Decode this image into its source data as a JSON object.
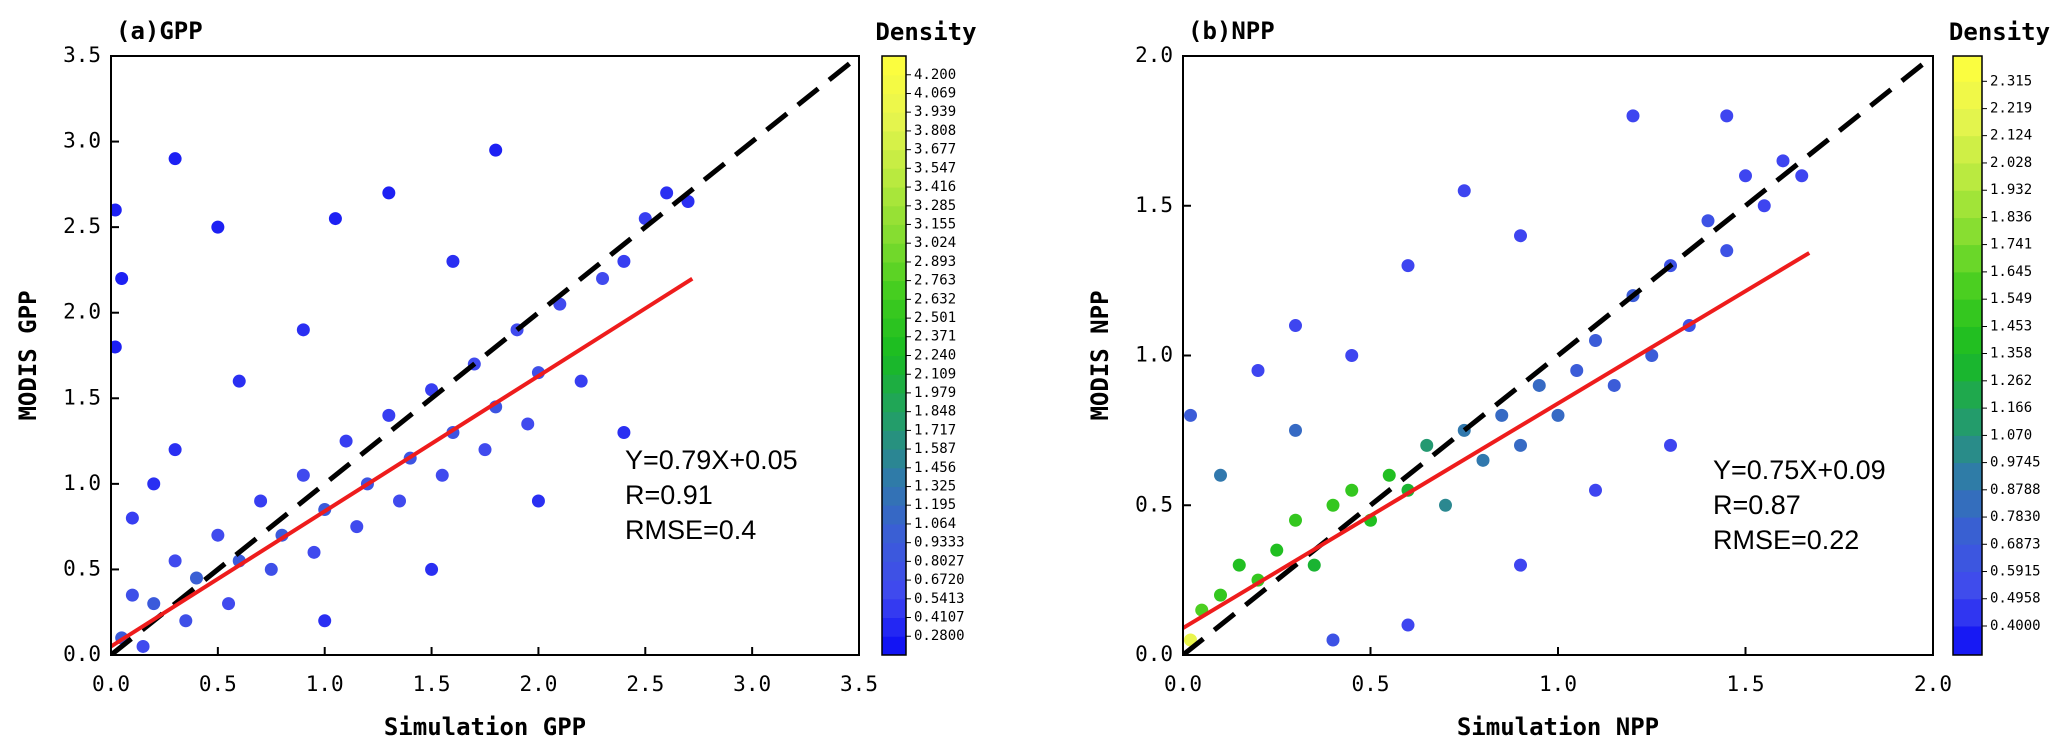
{
  "chart_data": [
    {
      "type": "scatter",
      "title": "(a)GPP",
      "xlabel": "Simulation GPP",
      "ylabel": "MODIS GPP",
      "xlim": [
        0,
        3.5
      ],
      "ylim": [
        0,
        3.5
      ],
      "xticks": [
        {
          "value": 0,
          "label": "0.0"
        },
        0.5,
        {
          "value": 1,
          "label": "1.0"
        },
        1.5,
        {
          "value": 2,
          "label": "2.0"
        },
        2.5,
        {
          "value": 3,
          "label": "3.0"
        },
        3.5
      ],
      "yticks": [
        {
          "value": 0,
          "label": "0.0"
        },
        0.5,
        {
          "value": 1,
          "label": "1.0"
        },
        1.5,
        {
          "value": 2,
          "label": "2.0"
        },
        2.5,
        {
          "value": 3,
          "label": "3.0"
        },
        3.5
      ],
      "x": [
        0.05,
        0.1,
        0.15,
        0.2,
        0.3,
        0.35,
        0.4,
        0.5,
        0.55,
        0.6,
        0.7,
        0.75,
        0.8,
        0.9,
        0.95,
        1.0,
        1.1,
        1.15,
        1.2,
        1.3,
        1.35,
        1.4,
        1.5,
        1.55,
        1.6,
        1.7,
        1.75,
        1.8,
        1.9,
        1.95,
        2.0,
        2.1,
        2.2,
        2.3,
        2.4,
        2.5,
        2.6,
        2.7,
        0.3,
        0.5,
        1.05,
        1.3,
        1.8,
        0.02,
        0.05,
        0.02,
        0.3,
        0.6,
        1.0,
        1.5,
        2.0,
        2.4,
        0.9,
        1.6,
        0.1,
        0.2
      ],
      "y": [
        0.1,
        0.35,
        0.05,
        0.3,
        0.55,
        0.2,
        0.45,
        0.7,
        0.3,
        0.55,
        0.9,
        0.5,
        0.7,
        1.05,
        0.6,
        0.85,
        1.25,
        0.75,
        1.0,
        1.4,
        0.9,
        1.15,
        1.55,
        1.05,
        1.3,
        1.7,
        1.2,
        1.45,
        1.9,
        1.35,
        1.65,
        2.05,
        1.6,
        2.2,
        2.3,
        2.55,
        2.7,
        2.65,
        2.9,
        2.5,
        2.55,
        2.7,
        2.95,
        2.6,
        2.2,
        1.8,
        1.2,
        1.6,
        0.2,
        0.5,
        0.9,
        1.3,
        1.9,
        2.3,
        0.8,
        1.0
      ],
      "density": [
        0.9,
        0.7,
        0.6,
        0.9,
        0.6,
        0.7,
        1.0,
        0.6,
        0.6,
        0.9,
        0.5,
        0.7,
        0.9,
        0.6,
        0.6,
        0.9,
        0.5,
        0.6,
        0.8,
        0.5,
        0.6,
        0.8,
        0.5,
        0.6,
        0.8,
        0.6,
        0.6,
        0.8,
        0.6,
        0.6,
        0.7,
        0.6,
        0.5,
        0.6,
        0.5,
        0.5,
        0.4,
        0.4,
        0.3,
        0.3,
        0.3,
        0.3,
        0.3,
        0.3,
        0.3,
        0.3,
        0.4,
        0.4,
        0.4,
        0.4,
        0.4,
        0.4,
        0.4,
        0.4,
        0.5,
        0.4
      ],
      "identity_line": true,
      "fit": {
        "slope": 0.79,
        "intercept": 0.05,
        "xrange": [
          0,
          2.72
        ],
        "color": "#ee1c1c"
      },
      "annotations": [
        "Y=0.79X+0.05",
        "R=0.91",
        "RMSE=0.4"
      ],
      "colorbar": {
        "title": "Density",
        "lim": [
          0.149,
          4.331
        ],
        "ticks": [
          {
            "value": 0.28,
            "label": "0.2800"
          },
          0.4107,
          0.5413,
          {
            "value": 0.672,
            "label": "0.6720"
          },
          0.8027,
          0.9333,
          1.064,
          1.195,
          1.325,
          1.456,
          1.587,
          1.717,
          1.848,
          1.979,
          2.109,
          {
            "value": 2.24,
            "label": "2.240"
          },
          2.371,
          2.501,
          2.632,
          2.763,
          2.893,
          3.024,
          3.155,
          3.285,
          3.416,
          3.547,
          3.677,
          3.808,
          3.939,
          4.069,
          {
            "value": 4.2,
            "label": "4.200"
          }
        ],
        "colormap": [
          "#0a0af5",
          "#4048f0",
          "#3a5ed6",
          "#2f7ca6",
          "#22a064",
          "#18bb22",
          "#40cc1e",
          "#84dd30",
          "#bbea40",
          "#e8f54e",
          "#ffff3c"
        ]
      }
    },
    {
      "type": "scatter",
      "title": "(b)NPP",
      "xlabel": "Simulation NPP",
      "ylabel": "MODIS NPP",
      "xlim": [
        0,
        2
      ],
      "ylim": [
        0,
        2
      ],
      "xticks": [
        {
          "value": 0,
          "label": "0.0"
        },
        0.5,
        {
          "value": 1,
          "label": "1.0"
        },
        1.5,
        {
          "value": 2,
          "label": "2.0"
        }
      ],
      "yticks": [
        {
          "value": 0,
          "label": "0.0"
        },
        0.5,
        {
          "value": 1,
          "label": "1.0"
        },
        1.5,
        {
          "value": 2,
          "label": "2.0"
        }
      ],
      "x": [
        0.02,
        0.05,
        0.1,
        0.15,
        0.2,
        0.25,
        0.3,
        0.35,
        0.4,
        0.45,
        0.5,
        0.55,
        0.6,
        0.65,
        0.7,
        0.75,
        0.8,
        0.85,
        0.9,
        0.95,
        1.0,
        1.05,
        1.1,
        1.15,
        1.2,
        1.25,
        1.3,
        1.35,
        1.4,
        1.45,
        1.5,
        1.55,
        1.6,
        1.65,
        0.2,
        0.3,
        0.45,
        0.6,
        0.75,
        0.9,
        1.2,
        1.45,
        0.6,
        0.9,
        1.1,
        1.3,
        0.4,
        0.02,
        0.1,
        0.3
      ],
      "y": [
        0.05,
        0.15,
        0.2,
        0.3,
        0.25,
        0.35,
        0.45,
        0.3,
        0.5,
        0.55,
        0.45,
        0.6,
        0.55,
        0.7,
        0.5,
        0.75,
        0.65,
        0.8,
        0.7,
        0.9,
        0.8,
        0.95,
        1.05,
        0.9,
        1.2,
        1.0,
        1.3,
        1.1,
        1.45,
        1.35,
        1.6,
        1.5,
        1.65,
        1.6,
        0.95,
        1.1,
        1.0,
        1.3,
        1.55,
        1.4,
        1.8,
        1.8,
        0.1,
        0.3,
        0.55,
        0.7,
        0.05,
        0.8,
        0.6,
        0.75
      ],
      "density": [
        2.2,
        1.6,
        1.5,
        1.4,
        1.5,
        1.4,
        1.5,
        1.3,
        1.5,
        1.5,
        1.4,
        1.4,
        1.3,
        1.1,
        1.0,
        0.9,
        0.9,
        0.8,
        0.8,
        0.8,
        0.8,
        0.7,
        0.7,
        0.7,
        0.7,
        0.7,
        0.6,
        0.6,
        0.6,
        0.6,
        0.5,
        0.5,
        0.5,
        0.5,
        0.5,
        0.5,
        0.5,
        0.5,
        0.5,
        0.5,
        0.5,
        0.5,
        0.5,
        0.5,
        0.5,
        0.5,
        0.6,
        0.7,
        0.9,
        0.8
      ],
      "identity_line": true,
      "fit": {
        "slope": 0.75,
        "intercept": 0.09,
        "xrange": [
          0,
          1.67
        ],
        "color": "#ee1c1c"
      },
      "annotations": [
        "Y=0.75X+0.09",
        "R=0.87",
        "RMSE=0.22"
      ],
      "colorbar": {
        "title": "Density",
        "lim": [
          0.298,
          2.404
        ],
        "ticks": [
          {
            "value": 0.4,
            "label": "0.4000"
          },
          0.4958,
          0.5915,
          0.6873,
          {
            "value": 0.783,
            "label": "0.7830"
          },
          0.8788,
          0.9745,
          {
            "value": 1.07,
            "label": "1.070"
          },
          1.166,
          1.262,
          1.358,
          1.453,
          1.549,
          1.645,
          1.741,
          1.836,
          1.932,
          2.028,
          2.124,
          2.219,
          2.315
        ],
        "colormap": [
          "#0a0af5",
          "#4048f0",
          "#3a5ed6",
          "#2f7ca6",
          "#22a064",
          "#18bb22",
          "#40cc1e",
          "#84dd30",
          "#bbea40",
          "#e8f54e",
          "#ffff3c"
        ]
      }
    }
  ]
}
